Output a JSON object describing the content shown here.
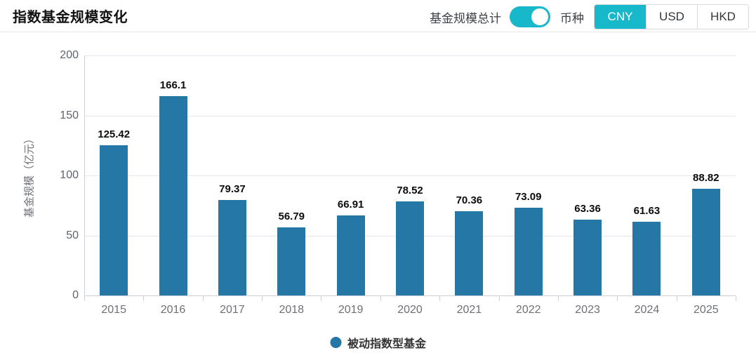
{
  "header": {
    "title": "指数基金规模变化",
    "toggle_label": "基金规模总计",
    "toggle_state": "on",
    "currency_label": "币种",
    "currency_options": [
      "CNY",
      "USD",
      "HKD"
    ],
    "currency_selected": "CNY"
  },
  "colors": {
    "accent_cyan": "#17b8ca",
    "bar_blue": "#2577a6",
    "grid_line": "#e3e6ec",
    "axis_line": "#ccd0dc",
    "axis_text": "#6e7079"
  },
  "legend": {
    "items": [
      {
        "label": "被动指数型基金",
        "color": "#2577a6"
      }
    ]
  },
  "chart_data": {
    "type": "bar",
    "categories": [
      "2015",
      "2016",
      "2017",
      "2018",
      "2019",
      "2020",
      "2021",
      "2022",
      "2023",
      "2024",
      "2025"
    ],
    "values": [
      125.42,
      166.1,
      79.37,
      56.79,
      66.91,
      78.52,
      70.36,
      73.09,
      63.36,
      61.63,
      88.82
    ],
    "series_name": "被动指数型基金",
    "title": "",
    "xlabel": "",
    "ylabel": "基金规模（亿元）",
    "ylim": [
      0,
      200
    ],
    "yticks": [
      0,
      50,
      100,
      150,
      200
    ],
    "grid": true,
    "legend_position": "bottom",
    "bar_color": "#2577a6"
  }
}
